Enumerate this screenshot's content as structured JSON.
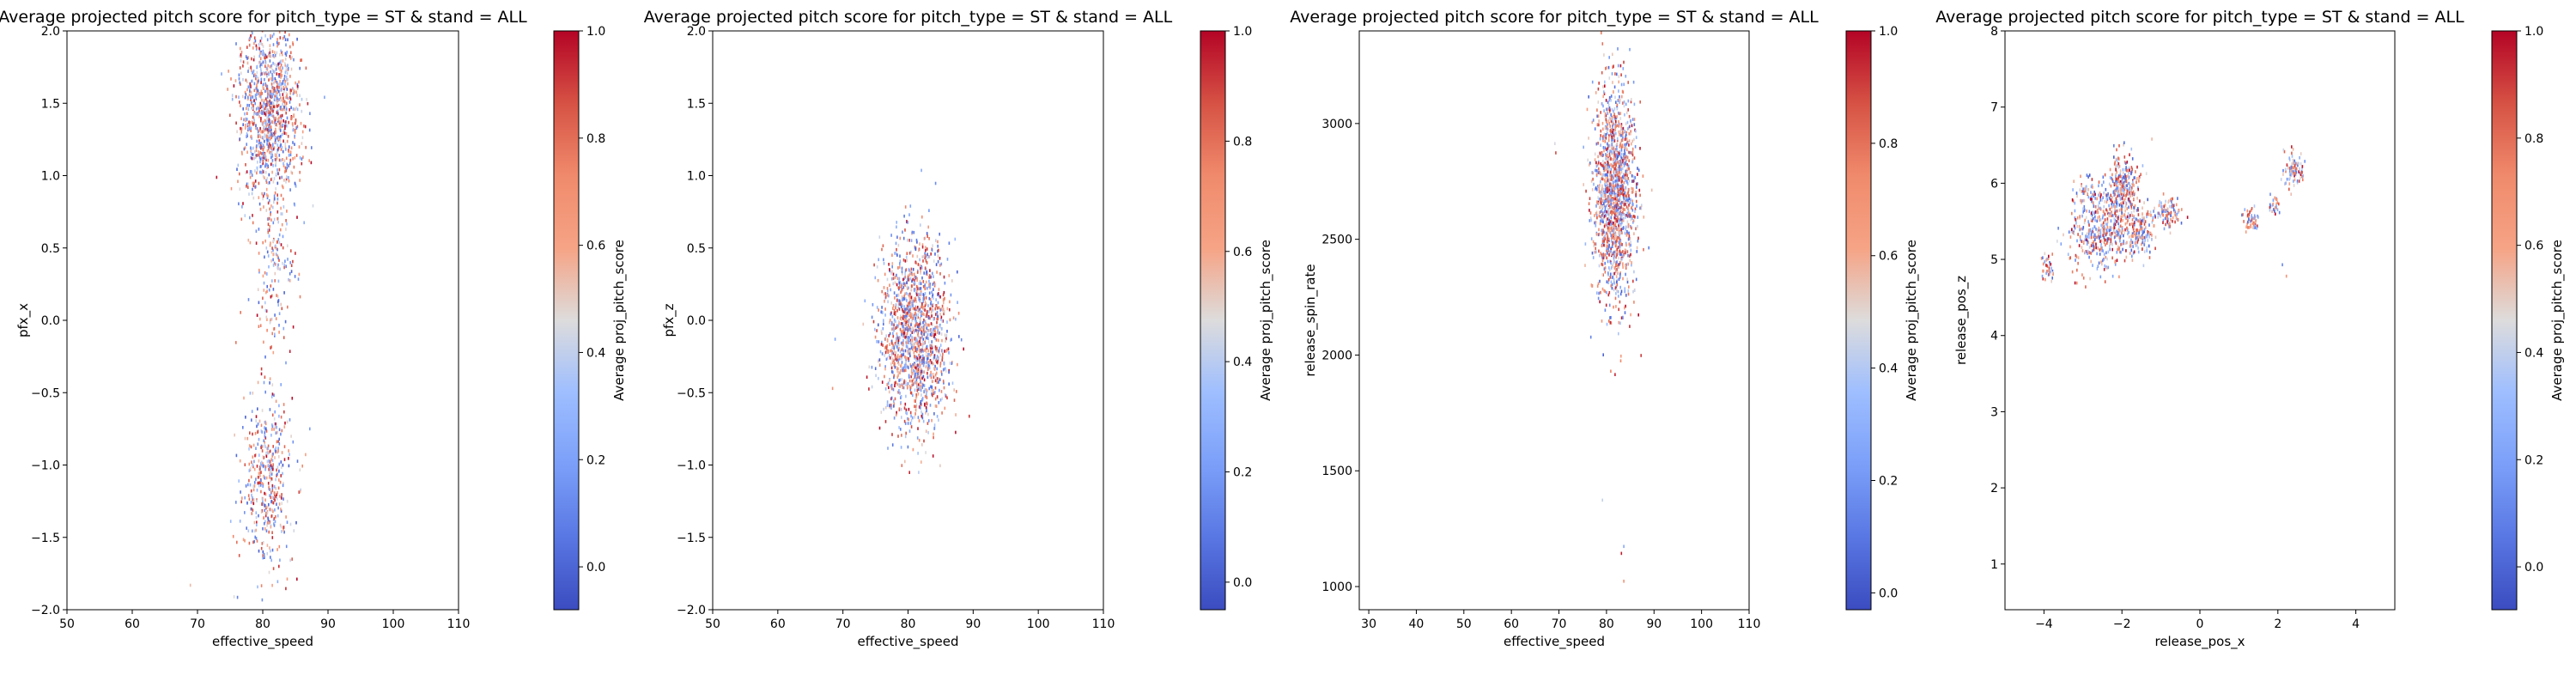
{
  "chart_data": [
    {
      "type": "heatmap",
      "title": "Average projected pitch score for pitch_type = ST & stand = ALL",
      "xlabel": "effective_speed",
      "ylabel": "pfx_x",
      "xlim": [
        50,
        110
      ],
      "ylim": [
        -2.0,
        2.0
      ],
      "xticks": [
        50,
        60,
        70,
        80,
        90,
        100,
        110
      ],
      "yticks": [
        -2.0,
        -1.5,
        -1.0,
        -0.5,
        0.0,
        0.5,
        1.0,
        1.5,
        2.0
      ],
      "xticklabels": [
        "50",
        "60",
        "70",
        "80",
        "90",
        "100",
        "110"
      ],
      "yticklabels": [
        "−2.0",
        "−1.5",
        "−1.0",
        "−0.5",
        "0.0",
        "0.5",
        "1.0",
        "1.5",
        "2.0"
      ],
      "colorbar_label": "Average proj_pitch_score",
      "colorbar_range": [
        -0.08,
        1.0
      ],
      "colorbar_ticks": [
        "0.0",
        "0.2",
        "0.4",
        "0.6",
        "0.8",
        "1.0"
      ],
      "colorbar_tick_values": [
        0.0,
        0.2,
        0.4,
        0.6,
        0.8,
        1.0
      ],
      "colormap": "coolwarm",
      "grid": false,
      "clusters": [
        {
          "x_center": 80.8,
          "y_center": 1.45,
          "x_spread": 2.4,
          "y_spread": 0.3,
          "count": 1100
        },
        {
          "x_center": 81.5,
          "y_center": 0.35,
          "x_spread": 1.6,
          "y_spread": 0.3,
          "count": 170
        },
        {
          "x_center": 80.5,
          "y_center": -1.1,
          "x_spread": 2.0,
          "y_spread": 0.3,
          "count": 450
        }
      ],
      "outliers": [
        {
          "x": 68.8,
          "y": -1.82
        },
        {
          "x": 75.5,
          "y": -1.9
        }
      ]
    },
    {
      "type": "heatmap",
      "title": "Average projected pitch score for pitch_type = ST & stand = ALL",
      "xlabel": "effective_speed",
      "ylabel": "pfx_z",
      "xlim": [
        50,
        110
      ],
      "ylim": [
        -2.0,
        2.0
      ],
      "xticks": [
        50,
        60,
        70,
        80,
        90,
        100,
        110
      ],
      "yticks": [
        -2.0,
        -1.5,
        -1.0,
        -0.5,
        0.0,
        0.5,
        1.0,
        1.5,
        2.0
      ],
      "xticklabels": [
        "50",
        "60",
        "70",
        "80",
        "90",
        "100",
        "110"
      ],
      "yticklabels": [
        "−2.0",
        "−1.5",
        "−1.0",
        "−0.5",
        "0.0",
        "0.5",
        "1.0",
        "1.5",
        "2.0"
      ],
      "colorbar_label": "Average proj_pitch_score",
      "colorbar_range": [
        -0.05,
        1.0
      ],
      "colorbar_ticks": [
        "0.0",
        "0.2",
        "0.4",
        "0.6",
        "0.8",
        "1.0"
      ],
      "colorbar_tick_values": [
        0.0,
        0.2,
        0.4,
        0.6,
        0.8,
        1.0
      ],
      "colormap": "coolwarm",
      "grid": false,
      "clusters": [
        {
          "x_center": 81.0,
          "y_center": -0.1,
          "x_spread": 2.6,
          "y_spread": 0.32,
          "count": 1500
        }
      ],
      "outliers": [
        {
          "x": 68.7,
          "y": -0.12
        },
        {
          "x": 68.3,
          "y": -0.46
        }
      ]
    },
    {
      "type": "heatmap",
      "title": "Average projected pitch score for pitch_type = ST & stand = ALL",
      "xlabel": "effective_speed",
      "ylabel": "release_spin_rate",
      "xlim": [
        28,
        110
      ],
      "ylim": [
        900,
        3400
      ],
      "xticks": [
        30,
        40,
        50,
        60,
        70,
        80,
        90,
        100,
        110
      ],
      "yticks": [
        1000,
        1500,
        2000,
        2500,
        3000
      ],
      "xticklabels": [
        "30",
        "40",
        "50",
        "60",
        "70",
        "80",
        "90",
        "100",
        "110"
      ],
      "yticklabels": [
        "1000",
        "1500",
        "2000",
        "2500",
        "3000"
      ],
      "colorbar_label": "Average proj_pitch_score",
      "colorbar_range": [
        -0.03,
        1.0
      ],
      "colorbar_ticks": [
        "0.0",
        "0.2",
        "0.4",
        "0.6",
        "0.8",
        "1.0"
      ],
      "colorbar_tick_values": [
        0.0,
        0.2,
        0.4,
        0.6,
        0.8,
        1.0
      ],
      "colormap": "coolwarm",
      "grid": false,
      "clusters": [
        {
          "x_center": 81.5,
          "y_center": 2700,
          "x_spread": 2.2,
          "y_spread": 230,
          "count": 1500
        }
      ],
      "outliers": [
        {
          "x": 69.0,
          "y": 2920
        },
        {
          "x": 69.2,
          "y": 2880
        },
        {
          "x": 79.0,
          "y": 1380
        },
        {
          "x": 83.5,
          "y": 1180
        },
        {
          "x": 83.5,
          "y": 1030
        },
        {
          "x": 83.0,
          "y": 1150
        }
      ]
    },
    {
      "type": "heatmap",
      "title": "Average projected pitch score for pitch_type = ST & stand = ALL",
      "xlabel": "release_pos_x",
      "ylabel": "release_pos_z",
      "xlim": [
        -5,
        5
      ],
      "ylim": [
        0.4,
        8.0
      ],
      "xticks": [
        -4,
        -2,
        0,
        2,
        4
      ],
      "yticks": [
        1,
        2,
        3,
        4,
        5,
        6,
        7,
        8
      ],
      "xticklabels": [
        "−4",
        "−2",
        "0",
        "2",
        "4"
      ],
      "yticklabels": [
        "1",
        "2",
        "3",
        "4",
        "5",
        "6",
        "7",
        "8"
      ],
      "colorbar_label": "Average proj_pitch_score",
      "colorbar_range": [
        -0.08,
        1.0
      ],
      "colorbar_ticks": [
        "0.0",
        "0.2",
        "0.4",
        "0.6",
        "0.8",
        "1.0"
      ],
      "colorbar_tick_values": [
        0.0,
        0.2,
        0.4,
        0.6,
        0.8,
        1.0
      ],
      "colormap": "coolwarm",
      "grid": false,
      "clusters": [
        {
          "x_center": -2.7,
          "y_center": 5.3,
          "x_spread": 0.35,
          "y_spread": 0.25,
          "count": 260
        },
        {
          "x_center": -2.0,
          "y_center": 5.95,
          "x_spread": 0.22,
          "y_spread": 0.22,
          "count": 280
        },
        {
          "x_center": -2.1,
          "y_center": 5.5,
          "x_spread": 0.3,
          "y_spread": 0.22,
          "count": 180
        },
        {
          "x_center": -1.5,
          "y_center": 5.35,
          "x_spread": 0.18,
          "y_spread": 0.14,
          "count": 120
        },
        {
          "x_center": -0.85,
          "y_center": 5.6,
          "x_spread": 0.18,
          "y_spread": 0.1,
          "count": 110
        },
        {
          "x_center": -2.9,
          "y_center": 5.9,
          "x_spread": 0.2,
          "y_spread": 0.1,
          "count": 60
        },
        {
          "x_center": -3.9,
          "y_center": 4.9,
          "x_spread": 0.1,
          "y_spread": 0.1,
          "count": 35
        },
        {
          "x_center": 1.3,
          "y_center": 5.55,
          "x_spread": 0.12,
          "y_spread": 0.1,
          "count": 50
        },
        {
          "x_center": 2.4,
          "y_center": 6.2,
          "x_spread": 0.13,
          "y_spread": 0.12,
          "count": 90
        },
        {
          "x_center": 1.9,
          "y_center": 5.7,
          "x_spread": 0.08,
          "y_spread": 0.08,
          "count": 25
        }
      ],
      "outliers": [
        {
          "x": -1.25,
          "y": 6.6
        },
        {
          "x": 2.1,
          "y": 4.95
        },
        {
          "x": 2.2,
          "y": 4.8
        },
        {
          "x": -1.8,
          "y": 5.85
        }
      ]
    }
  ]
}
